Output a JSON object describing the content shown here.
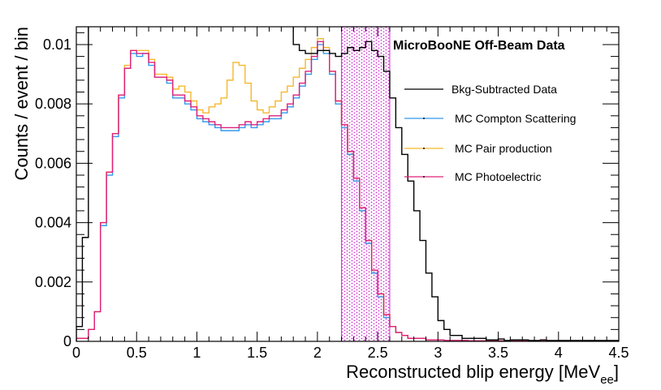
{
  "chart_data": {
    "type": "histogram",
    "title": "MicroBooNE Off-Beam Data",
    "xlabel": "Reconstructed blip energy [MeV",
    "xlabel_sub": "ee",
    "xlabel_close": "]",
    "ylabel": "Counts / event / bin",
    "xlim": [
      0,
      4.5
    ],
    "ylim": [
      0,
      0.0106
    ],
    "bin_width": 0.05,
    "x_ticks": [
      "0",
      "0.5",
      "1",
      "1.5",
      "2",
      "2.5",
      "3",
      "3.5",
      "4",
      "4.5"
    ],
    "y_ticks": [
      "0",
      "0.002",
      "0.004",
      "0.006",
      "0.008",
      "0.01"
    ],
    "legend": {
      "data": "Bkg-Subtracted Data",
      "compton": "MC Compton Scattering",
      "pair": "MC Pair production",
      "photo": "MC Photoelectric"
    },
    "shaded_band": {
      "x_range": [
        2.2,
        2.6
      ],
      "color": "#cc33cc"
    },
    "colors": {
      "data": "#000000",
      "compton": "#3399ee",
      "pair": "#f5b82e",
      "photo": "#e0207a"
    },
    "series": [
      {
        "name": "MC Compton Scattering",
        "key": "compton",
        "values": [
          0.0001,
          0.0001,
          0.0004,
          0.001,
          0.0039,
          0.0056,
          0.0069,
          0.0082,
          0.0092,
          0.0097,
          0.0096,
          0.0097,
          0.0093,
          0.0089,
          0.0089,
          0.0087,
          0.0082,
          0.0082,
          0.008,
          0.0078,
          0.0075,
          0.0074,
          0.0073,
          0.0072,
          0.0071,
          0.0071,
          0.0071,
          0.0072,
          0.0073,
          0.0072,
          0.0073,
          0.0074,
          0.0075,
          0.0075,
          0.0077,
          0.0079,
          0.0082,
          0.0086,
          0.009,
          0.0095,
          0.01,
          0.0097,
          0.009,
          0.008,
          0.0072,
          0.0063,
          0.0054,
          0.0044,
          0.0033,
          0.0023,
          0.0015,
          0.0008,
          0.0005,
          0.0003,
          0.0002,
          0.0001,
          0.0001,
          0.0001,
          5e-05,
          5e-05,
          5e-05,
          3e-05,
          3e-05,
          3e-05,
          3e-05,
          2e-05,
          2e-05,
          2e-05,
          2e-05,
          2e-05,
          2e-05,
          2e-05,
          2e-05,
          2e-05,
          2e-05,
          2e-05,
          2e-05,
          2e-05,
          2e-05,
          2e-05,
          2e-05,
          2e-05,
          2e-05,
          2e-05,
          2e-05,
          2e-05,
          2e-05,
          2e-05,
          2e-05,
          2e-05
        ]
      },
      {
        "name": "MC Pair production",
        "key": "pair",
        "values": [
          0.0001,
          0.0001,
          0.0004,
          0.001,
          0.004,
          0.0057,
          0.007,
          0.0083,
          0.0093,
          0.0098,
          0.0098,
          0.0098,
          0.0095,
          0.009,
          0.009,
          0.0089,
          0.0085,
          0.0086,
          0.0084,
          0.0081,
          0.0078,
          0.0077,
          0.0079,
          0.008,
          0.0082,
          0.0088,
          0.0094,
          0.0093,
          0.0087,
          0.0081,
          0.0078,
          0.0077,
          0.0079,
          0.0081,
          0.0084,
          0.0086,
          0.0089,
          0.0092,
          0.0095,
          0.0099,
          0.0102,
          0.0099,
          0.0091,
          0.0081,
          0.0073,
          0.0064,
          0.0055,
          0.0045,
          0.0034,
          0.0024,
          0.0016,
          0.0009,
          0.0005,
          0.0003,
          0.0002,
          0.0001,
          0.0001,
          0.0001,
          5e-05,
          5e-05,
          5e-05,
          3e-05,
          3e-05,
          3e-05,
          3e-05,
          2e-05,
          2e-05,
          2e-05,
          2e-05,
          2e-05,
          2e-05,
          2e-05,
          2e-05,
          2e-05,
          2e-05,
          2e-05,
          2e-05,
          2e-05,
          2e-05,
          2e-05,
          2e-05,
          2e-05,
          2e-05,
          2e-05,
          2e-05,
          2e-05,
          2e-05,
          2e-05,
          2e-05,
          2e-05
        ]
      },
      {
        "name": "MC Photoelectric",
        "key": "photo",
        "values": [
          0.0001,
          0.0001,
          0.0004,
          0.001,
          0.004,
          0.0057,
          0.007,
          0.0083,
          0.0092,
          0.0098,
          0.0097,
          0.0097,
          0.0094,
          0.0089,
          0.0089,
          0.0088,
          0.0083,
          0.0083,
          0.0081,
          0.0079,
          0.0076,
          0.0075,
          0.0074,
          0.0073,
          0.0072,
          0.0072,
          0.0072,
          0.0073,
          0.0074,
          0.0073,
          0.0074,
          0.0075,
          0.0076,
          0.0076,
          0.0078,
          0.008,
          0.0083,
          0.0087,
          0.0091,
          0.0096,
          0.0101,
          0.0098,
          0.0091,
          0.0081,
          0.0073,
          0.0064,
          0.0055,
          0.0045,
          0.0034,
          0.0024,
          0.0016,
          0.0009,
          0.0005,
          0.0003,
          0.0002,
          0.0001,
          0.0001,
          0.0001,
          5e-05,
          5e-05,
          5e-05,
          3e-05,
          3e-05,
          3e-05,
          3e-05,
          2e-05,
          2e-05,
          2e-05,
          2e-05,
          2e-05,
          2e-05,
          2e-05,
          2e-05,
          2e-05,
          2e-05,
          2e-05,
          2e-05,
          2e-05,
          2e-05,
          2e-05,
          2e-05,
          2e-05,
          2e-05,
          2e-05,
          2e-05,
          2e-05,
          2e-05,
          2e-05,
          2e-05,
          2e-05
        ]
      },
      {
        "name": "Bkg-Subtracted Data",
        "key": "data",
        "values": [
          0.0005,
          0.0035,
          0.011,
          0.011,
          0.011,
          0.011,
          0.011,
          0.011,
          0.011,
          0.011,
          0.011,
          0.011,
          0.011,
          0.011,
          0.011,
          0.011,
          0.011,
          0.011,
          0.011,
          0.011,
          0.011,
          0.011,
          0.011,
          0.011,
          0.011,
          0.011,
          0.011,
          0.011,
          0.011,
          0.011,
          0.011,
          0.011,
          0.011,
          0.011,
          0.011,
          0.011,
          0.01,
          0.0098,
          0.0097,
          0.0097,
          0.0098,
          0.0098,
          0.0097,
          0.0096,
          0.0097,
          0.0099,
          0.0098,
          0.0099,
          0.0101,
          0.0098,
          0.0096,
          0.0091,
          0.0082,
          0.0072,
          0.0063,
          0.0054,
          0.0044,
          0.0034,
          0.0023,
          0.0015,
          0.0007,
          0.0004,
          0.0002,
          0.0002,
          0.0001,
          0.0001,
          0.0001,
          0.0001,
          5e-05,
          5e-05,
          8e-05,
          3e-05,
          5e-05,
          5e-05,
          5e-05,
          3e-05,
          3e-05,
          5e-05,
          3e-05,
          3e-05,
          3e-05,
          3e-05,
          3e-05,
          3e-05,
          3e-05,
          3e-05,
          3e-05,
          3e-05,
          3e-05,
          3e-05
        ]
      }
    ]
  }
}
